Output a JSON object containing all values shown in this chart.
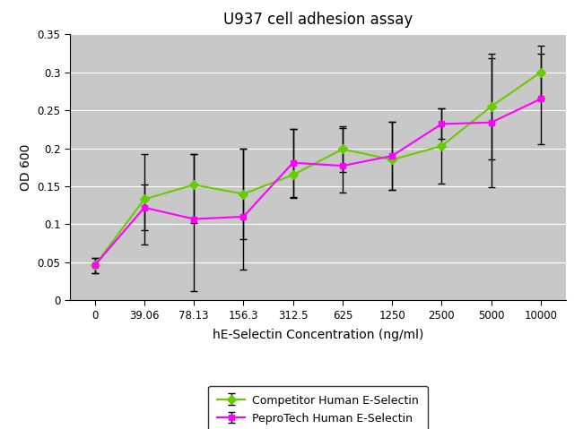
{
  "title": "U937 cell adhesion assay",
  "xlabel": "hE-Selectin Concentration (ng/ml)",
  "ylabel": "OD 600",
  "x_labels": [
    "0",
    "39.06",
    "78.13",
    "156.3",
    "312.5",
    "625",
    "1250",
    "2500",
    "5000",
    "10000"
  ],
  "x_positions": [
    0,
    1,
    2,
    3,
    4,
    5,
    6,
    7,
    8,
    9
  ],
  "competitor_y": [
    0.046,
    0.133,
    0.152,
    0.14,
    0.165,
    0.199,
    0.185,
    0.203,
    0.255,
    0.3
  ],
  "competitor_yerr_upper": [
    0.01,
    0.06,
    0.04,
    0.06,
    0.06,
    0.03,
    0.05,
    0.05,
    0.07,
    0.035
  ],
  "competitor_yerr_lower": [
    0.01,
    0.06,
    0.14,
    0.1,
    0.03,
    0.03,
    0.04,
    0.05,
    0.07,
    0.035
  ],
  "pepro_y": [
    0.046,
    0.122,
    0.107,
    0.11,
    0.181,
    0.177,
    0.19,
    0.232,
    0.234,
    0.265
  ],
  "pepro_yerr_upper": [
    0.01,
    0.03,
    0.085,
    0.09,
    0.045,
    0.05,
    0.045,
    0.02,
    0.085,
    0.06
  ],
  "pepro_yerr_lower": [
    0.01,
    0.03,
    0.005,
    0.03,
    0.045,
    0.035,
    0.045,
    0.02,
    0.085,
    0.06
  ],
  "competitor_color": "#66cc00",
  "pepro_color": "#ff00ff",
  "figure_background_color": "#ffffff",
  "plot_background_color": "#c8c8c8",
  "grid_color": "#ffffff",
  "ylim": [
    0,
    0.35
  ],
  "yticks": [
    0,
    0.05,
    0.1,
    0.15,
    0.2,
    0.25,
    0.3,
    0.35
  ],
  "legend_labels": [
    "Competitor Human E-Selectin",
    "PeproTech Human E-Selectin"
  ],
  "title_fontsize": 12,
  "label_fontsize": 10,
  "tick_fontsize": 8.5,
  "legend_fontsize": 9
}
